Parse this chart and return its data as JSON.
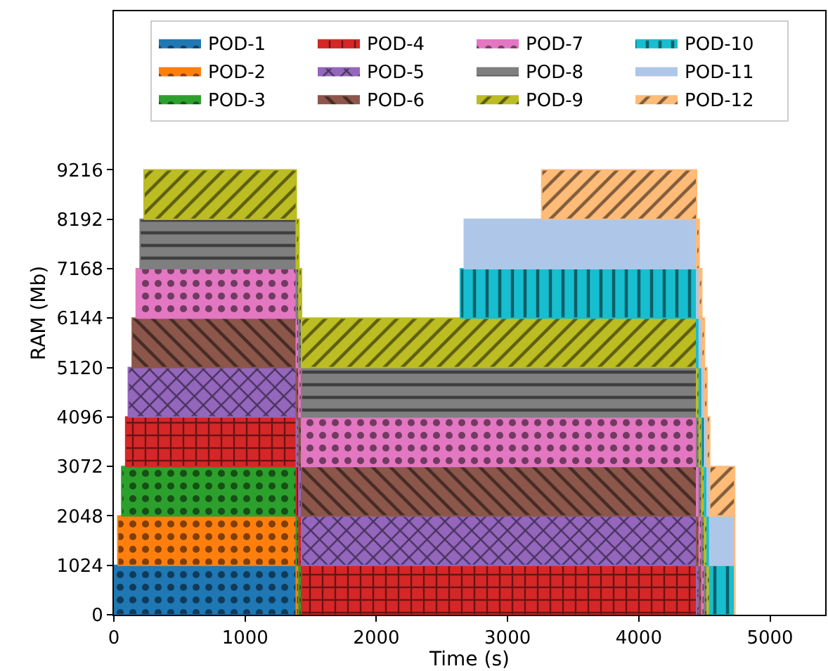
{
  "chart_data": {
    "type": "area",
    "stacked": true,
    "xlabel": "Time (s)",
    "ylabel": "RAM (Mb)",
    "x": [
      0,
      30,
      30,
      60,
      60,
      90,
      90,
      110,
      110,
      140,
      140,
      170,
      170,
      200,
      200,
      230,
      230,
      1390,
      1390,
      1410,
      1410,
      1430,
      1430,
      2640,
      2640,
      2670,
      2670,
      3260,
      3260,
      4440,
      4440,
      4460,
      4460,
      4480,
      4480,
      4500,
      4500,
      4520,
      4520,
      4540,
      4540,
      4730,
      4730
    ],
    "series": [
      {
        "name": "POD-1",
        "color": "#1f77b4",
        "values": [
          1024,
          1024,
          1024,
          1024,
          1024,
          1024,
          1024,
          1024,
          1024,
          1024,
          1024,
          1024,
          1024,
          1024,
          1024,
          1024,
          1024,
          1024,
          0,
          null,
          null,
          null,
          null,
          null,
          null,
          null,
          null,
          null,
          null,
          null,
          null,
          null,
          null,
          null,
          null,
          null,
          null,
          null,
          null,
          null,
          null,
          null,
          null
        ]
      },
      {
        "name": "POD-2",
        "color": "#ff7f0e",
        "values": [
          null,
          0,
          1024,
          1024,
          1024,
          1024,
          1024,
          1024,
          1024,
          1024,
          1024,
          1024,
          1024,
          1024,
          1024,
          1024,
          1024,
          1024,
          1024,
          1024,
          0,
          null,
          null,
          null,
          null,
          null,
          null,
          null,
          null,
          null,
          null,
          null,
          null,
          null,
          null,
          null,
          null,
          null,
          null,
          null,
          null,
          null,
          null
        ]
      },
      {
        "name": "POD-3",
        "color": "#2ca02c",
        "values": [
          null,
          null,
          null,
          0,
          1024,
          1024,
          1024,
          1024,
          1024,
          1024,
          1024,
          1024,
          1024,
          1024,
          1024,
          1024,
          1024,
          1024,
          1024,
          1024,
          1024,
          1024,
          0,
          null,
          null,
          null,
          null,
          null,
          null,
          null,
          null,
          null,
          null,
          null,
          null,
          null,
          null,
          null,
          null,
          null,
          null,
          null,
          null
        ]
      },
      {
        "name": "POD-4",
        "color": "#d62728",
        "values": [
          null,
          null,
          null,
          null,
          null,
          0,
          1024,
          1024,
          1024,
          1024,
          1024,
          1024,
          1024,
          1024,
          1024,
          1024,
          1024,
          1024,
          1024,
          1024,
          1024,
          1024,
          1024,
          1024,
          1024,
          1024,
          1024,
          1024,
          1024,
          1024,
          0,
          null,
          null,
          null,
          null,
          null,
          null,
          null,
          null,
          null,
          null,
          null,
          null
        ]
      },
      {
        "name": "POD-5",
        "color": "#9467bd",
        "values": [
          null,
          null,
          null,
          null,
          null,
          null,
          null,
          0,
          1024,
          1024,
          1024,
          1024,
          1024,
          1024,
          1024,
          1024,
          1024,
          1024,
          1024,
          1024,
          1024,
          1024,
          1024,
          1024,
          1024,
          1024,
          1024,
          1024,
          1024,
          1024,
          1024,
          1024,
          0,
          null,
          null,
          null,
          null,
          null,
          null,
          null,
          null,
          null,
          null
        ]
      },
      {
        "name": "POD-6",
        "color": "#8c564b",
        "values": [
          null,
          null,
          null,
          null,
          null,
          null,
          null,
          null,
          null,
          0,
          1024,
          1024,
          1024,
          1024,
          1024,
          1024,
          1024,
          1024,
          1024,
          1024,
          1024,
          1024,
          1024,
          1024,
          1024,
          1024,
          1024,
          1024,
          1024,
          1024,
          1024,
          1024,
          1024,
          1024,
          0,
          null,
          null,
          null,
          null,
          null,
          null,
          null,
          null
        ]
      },
      {
        "name": "POD-7",
        "color": "#e377c2",
        "values": [
          null,
          null,
          null,
          null,
          null,
          null,
          null,
          null,
          null,
          null,
          null,
          0,
          1024,
          1024,
          1024,
          1024,
          1024,
          1024,
          1024,
          1024,
          1024,
          1024,
          1024,
          1024,
          1024,
          1024,
          1024,
          1024,
          1024,
          1024,
          1024,
          1024,
          1024,
          1024,
          1024,
          1024,
          0,
          null,
          null,
          null,
          null,
          null,
          null
        ]
      },
      {
        "name": "POD-8",
        "color": "#7f7f7f",
        "values": [
          null,
          null,
          null,
          null,
          null,
          null,
          null,
          null,
          null,
          null,
          null,
          null,
          null,
          0,
          1024,
          1024,
          1024,
          1024,
          1024,
          1024,
          1024,
          1024,
          1024,
          1024,
          1024,
          1024,
          1024,
          1024,
          1024,
          1024,
          1024,
          1024,
          1024,
          1024,
          1024,
          1024,
          1024,
          1024,
          0,
          null,
          null,
          null,
          null
        ]
      },
      {
        "name": "POD-9",
        "color": "#bcbd22",
        "values": [
          null,
          null,
          null,
          null,
          null,
          null,
          null,
          null,
          null,
          null,
          null,
          null,
          null,
          null,
          null,
          0,
          1024,
          1024,
          1024,
          1024,
          1024,
          1024,
          1024,
          1024,
          1024,
          1024,
          1024,
          1024,
          1024,
          1024,
          1024,
          1024,
          1024,
          1024,
          1024,
          1024,
          1024,
          1024,
          1024,
          1024,
          0,
          null,
          null
        ]
      },
      {
        "name": "POD-10",
        "color": "#17becf",
        "values": [
          null,
          null,
          null,
          null,
          null,
          null,
          null,
          null,
          null,
          null,
          null,
          null,
          null,
          null,
          null,
          null,
          null,
          null,
          null,
          null,
          null,
          null,
          null,
          0,
          1024,
          1024,
          1024,
          1024,
          1024,
          1024,
          1024,
          1024,
          1024,
          1024,
          1024,
          1024,
          1024,
          1024,
          1024,
          1024,
          1024,
          1024,
          0
        ]
      },
      {
        "name": "POD-11",
        "color": "#aec7e8",
        "values": [
          null,
          null,
          null,
          null,
          null,
          null,
          null,
          null,
          null,
          null,
          null,
          null,
          null,
          null,
          null,
          null,
          null,
          null,
          null,
          null,
          null,
          null,
          null,
          null,
          null,
          0,
          1024,
          1024,
          1024,
          1024,
          1024,
          1024,
          1024,
          1024,
          1024,
          1024,
          1024,
          1024,
          1024,
          1024,
          1024,
          1024,
          0
        ]
      },
      {
        "name": "POD-12",
        "color": "#ffbb78",
        "values": [
          null,
          null,
          null,
          null,
          null,
          null,
          null,
          null,
          null,
          null,
          null,
          null,
          null,
          null,
          null,
          null,
          null,
          null,
          null,
          null,
          null,
          null,
          null,
          null,
          null,
          null,
          null,
          0,
          1024,
          1024,
          1024,
          1024,
          1024,
          1024,
          1024,
          1024,
          1024,
          1024,
          1024,
          1024,
          1024,
          1024,
          0
        ]
      }
    ],
    "xlim": [
      0,
      5420
    ],
    "xticks": [
      0,
      1000,
      2000,
      3000,
      4000,
      5000
    ],
    "ylim": [
      0,
      12500
    ],
    "yticks": [
      0,
      1024,
      2048,
      3072,
      4096,
      5120,
      6144,
      7168,
      8192,
      9216
    ],
    "legend": "top"
  }
}
